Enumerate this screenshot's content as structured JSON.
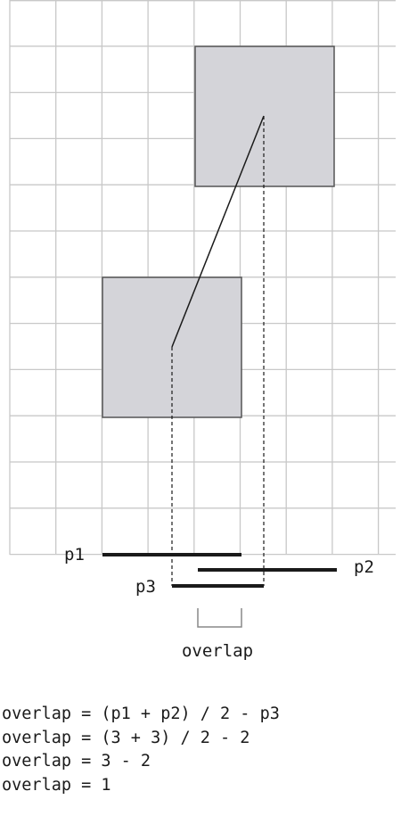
{
  "labels": {
    "p1": "p1",
    "p2": "p2",
    "p3": "p3",
    "overlap": "overlap"
  },
  "equations": [
    "overlap = (p1 + p2) / 2 - p3",
    "overlap = (3 + 3) / 2 - 2",
    "overlap = 3 - 2",
    "overlap = 1"
  ],
  "colors": {
    "grid": "#c8c8c8",
    "box_fill": "#d4d4d9",
    "box_stroke": "#555555",
    "bar": "#1a1a1a",
    "bracket": "#888888"
  }
}
